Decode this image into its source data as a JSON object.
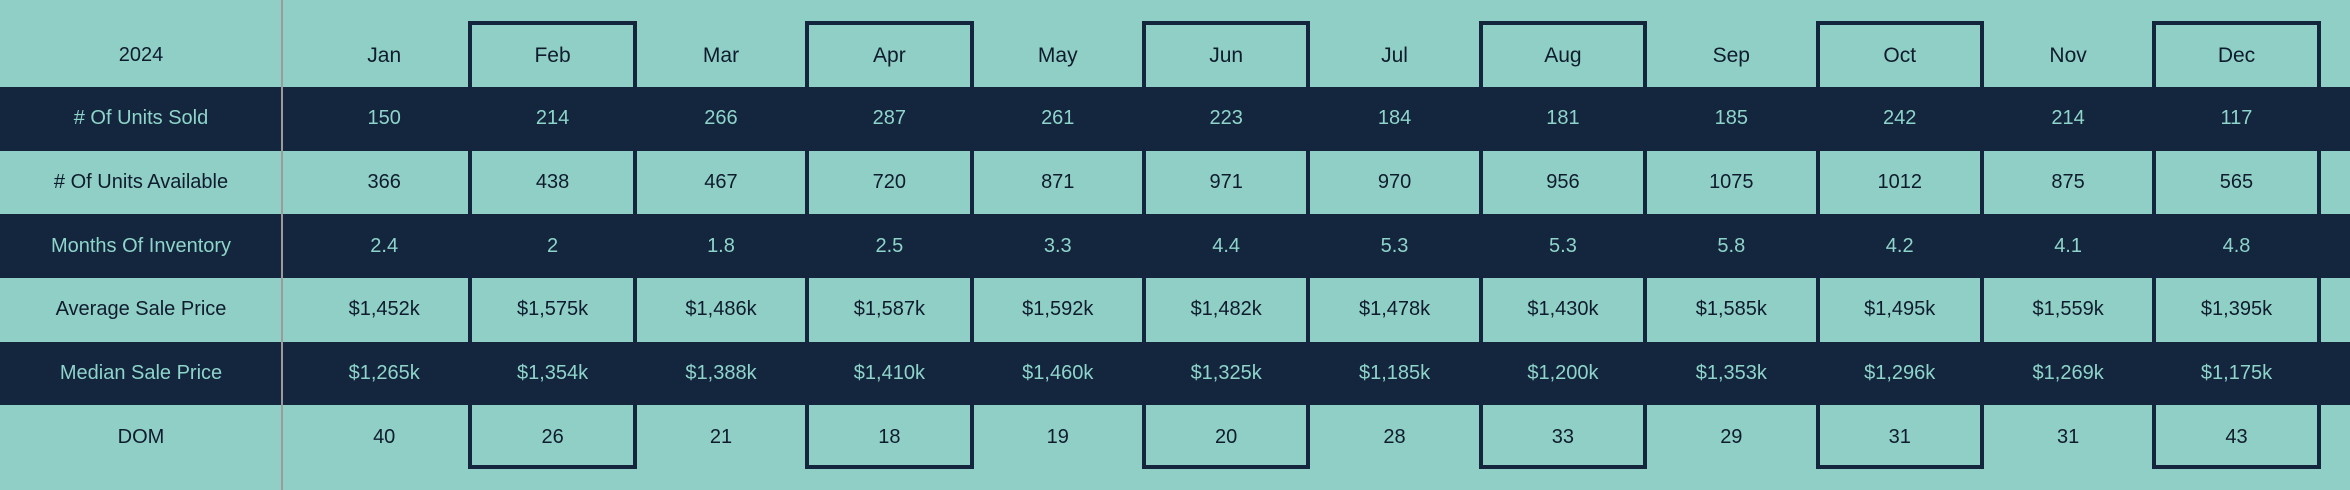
{
  "table": {
    "year_label": "2024",
    "months": [
      "Jan",
      "Feb",
      "Mar",
      "Apr",
      "May",
      "Jun",
      "Jul",
      "Aug",
      "Sep",
      "Oct",
      "Nov",
      "Dec"
    ],
    "boxed_month_indexes": [
      1,
      3,
      5,
      7,
      9,
      11
    ],
    "rows": [
      {
        "label": "# Of Units Sold",
        "values": [
          "150",
          "214",
          "266",
          "287",
          "261",
          "223",
          "184",
          "181",
          "185",
          "242",
          "214",
          "117"
        ]
      },
      {
        "label": "# Of Units Available",
        "values": [
          "366",
          "438",
          "467",
          "720",
          "871",
          "971",
          "970",
          "956",
          "1075",
          "1012",
          "875",
          "565"
        ]
      },
      {
        "label": "Months Of Inventory",
        "values": [
          "2.4",
          "2",
          "1.8",
          "2.5",
          "3.3",
          "4.4",
          "5.3",
          "5.3",
          "5.8",
          "4.2",
          "4.1",
          "4.8"
        ]
      },
      {
        "label": "Average Sale Price",
        "values": [
          "$1,452k",
          "$1,575k",
          "$1,486k",
          "$1,587k",
          "$1,592k",
          "$1,482k",
          "$1,478k",
          "$1,430k",
          "$1,585k",
          "$1,495k",
          "$1,559k",
          "$1,395k"
        ]
      },
      {
        "label": "Median Sale Price",
        "values": [
          "$1,265k",
          "$1,354k",
          "$1,388k",
          "$1,410k",
          "$1,460k",
          "$1,325k",
          "$1,185k",
          "$1,200k",
          "$1,353k",
          "$1,296k",
          "$1,269k",
          "$1,175k"
        ]
      },
      {
        "label": "DOM",
        "values": [
          "40",
          "26",
          "21",
          "18",
          "19",
          "20",
          "28",
          "33",
          "29",
          "31",
          "31",
          "43"
        ]
      }
    ]
  },
  "colors": {
    "teal_background": "#8FCFC6",
    "dark_navy": "#13263D",
    "light_text_on_dark": "#8FD4CB",
    "dark_text_on_light": "#0F1C2E",
    "column_divider_gray": "#9B9B9B"
  },
  "chart_data": {
    "type": "table",
    "title": "2024",
    "categories": [
      "Jan",
      "Feb",
      "Mar",
      "Apr",
      "May",
      "Jun",
      "Jul",
      "Aug",
      "Sep",
      "Oct",
      "Nov",
      "Dec"
    ],
    "series": [
      {
        "name": "# Of Units Sold",
        "values": [
          150,
          214,
          266,
          287,
          261,
          223,
          184,
          181,
          185,
          242,
          214,
          117
        ]
      },
      {
        "name": "# Of Units Available",
        "values": [
          366,
          438,
          467,
          720,
          871,
          971,
          970,
          956,
          1075,
          1012,
          875,
          565
        ]
      },
      {
        "name": "Months Of Inventory",
        "values": [
          2.4,
          2,
          1.8,
          2.5,
          3.3,
          4.4,
          5.3,
          5.3,
          5.8,
          4.2,
          4.1,
          4.8
        ]
      },
      {
        "name": "Average Sale Price ($k)",
        "values": [
          1452,
          1575,
          1486,
          1587,
          1592,
          1482,
          1478,
          1430,
          1585,
          1495,
          1559,
          1395
        ]
      },
      {
        "name": "Median Sale Price ($k)",
        "values": [
          1265,
          1354,
          1388,
          1410,
          1460,
          1325,
          1185,
          1200,
          1353,
          1296,
          1269,
          1175
        ]
      },
      {
        "name": "DOM",
        "values": [
          40,
          26,
          21,
          18,
          19,
          20,
          28,
          33,
          29,
          31,
          31,
          43
        ]
      }
    ],
    "layout_hints": {
      "row_striping": "alternating dark-navy / teal bands",
      "highlighted_columns": [
        "Feb",
        "Apr",
        "Jun",
        "Aug",
        "Oct",
        "Dec"
      ],
      "grid": "boxes drawn around highlighted columns only"
    }
  }
}
